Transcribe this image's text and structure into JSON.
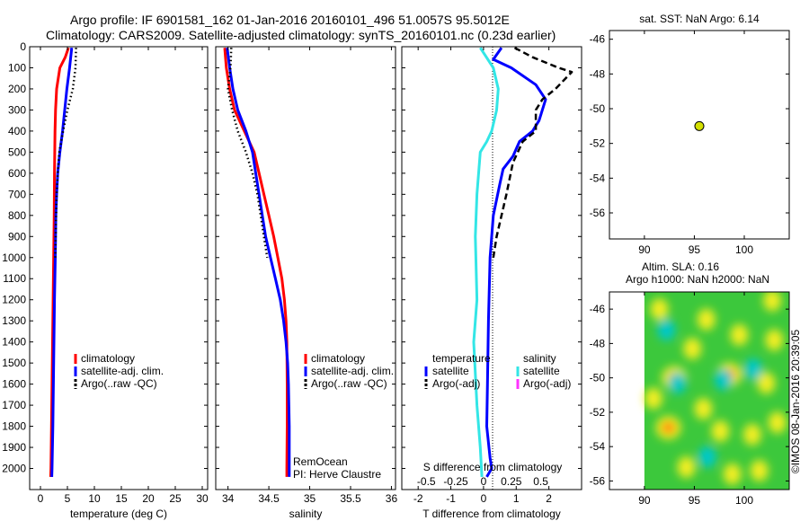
{
  "title": {
    "line1": "Argo profile: IF 6901581_162 01-Jan-2016 20160101_496 51.0057S 95.5012E",
    "line2": "Climatology: CARS2009. Satellite-adjusted climatology: synTS_20160101.nc (0.23d earlier)"
  },
  "side_label": "©IMOS 08-Jan-2016 20:39:05",
  "colors": {
    "climatology": "#ff0000",
    "satellite": "#0000ff",
    "argo": "#000000",
    "salinity_satellite": "#33e6e6",
    "salinity_argo": "#ff33ff",
    "float_marker": "#d4e000"
  },
  "chart_data": [
    {
      "type": "line",
      "id": "temperature",
      "xlabel": "temperature (deg C)",
      "xlim": [
        -2,
        31
      ],
      "xticks": [
        0,
        5,
        10,
        15,
        20,
        25,
        30
      ],
      "ylim": [
        0,
        2100
      ],
      "yticks": [
        0,
        100,
        200,
        300,
        400,
        500,
        600,
        700,
        800,
        900,
        1000,
        1100,
        1200,
        1300,
        1400,
        1500,
        1600,
        1700,
        1800,
        1900,
        2000
      ],
      "legend": [
        "climatology",
        "satellite-adj. clim.",
        "Argo(..raw -QC)"
      ],
      "series": [
        {
          "name": "climatology",
          "color": "#ff0000",
          "style": "solid",
          "points": [
            [
              5.2,
              5
            ],
            [
              4.6,
              50
            ],
            [
              3.6,
              100
            ],
            [
              3.0,
              200
            ],
            [
              2.8,
              300
            ],
            [
              2.7,
              400
            ],
            [
              2.6,
              600
            ],
            [
              2.55,
              800
            ],
            [
              2.45,
              1000
            ],
            [
              2.35,
              1200
            ],
            [
              2.25,
              1400
            ],
            [
              2.15,
              1600
            ],
            [
              2.05,
              1800
            ],
            [
              1.95,
              2000
            ],
            [
              1.9,
              2040
            ]
          ]
        },
        {
          "name": "satellite-adj. clim.",
          "color": "#0000ff",
          "style": "solid",
          "points": [
            [
              5.8,
              5
            ],
            [
              5.4,
              100
            ],
            [
              4.9,
              200
            ],
            [
              4.5,
              300
            ],
            [
              4.1,
              400
            ],
            [
              3.6,
              500
            ],
            [
              3.2,
              600
            ],
            [
              3.0,
              700
            ],
            [
              2.85,
              800
            ],
            [
              2.75,
              1000
            ],
            [
              2.6,
              1200
            ],
            [
              2.5,
              1400
            ],
            [
              2.4,
              1600
            ],
            [
              2.3,
              1800
            ],
            [
              2.15,
              2000
            ],
            [
              2.1,
              2040
            ]
          ]
        },
        {
          "name": "Argo(..raw -QC)",
          "color": "#000000",
          "style": "dotted",
          "points": [
            [
              6.6,
              5
            ],
            [
              6.5,
              100
            ],
            [
              6.0,
              200
            ],
            [
              5.0,
              300
            ],
            [
              4.2,
              400
            ],
            [
              3.5,
              500
            ],
            [
              3.2,
              600
            ],
            [
              3.0,
              700
            ],
            [
              2.9,
              800
            ],
            [
              2.75,
              1000
            ]
          ]
        }
      ]
    },
    {
      "type": "line",
      "id": "salinity",
      "xlabel": "salinity",
      "xlim": [
        33.85,
        36.05
      ],
      "xticks": [
        34,
        34.5,
        35,
        35.5,
        36
      ],
      "ylim": [
        0,
        2100
      ],
      "legend": [
        "climatology",
        "satellite-adj. clim.",
        "Argo(..raw -QC)"
      ],
      "annotation": [
        "RemOcean",
        "PI: Herve Claustre"
      ],
      "series": [
        {
          "name": "climatology",
          "color": "#ff0000",
          "style": "solid",
          "points": [
            [
              33.96,
              5
            ],
            [
              33.98,
              100
            ],
            [
              34.02,
              200
            ],
            [
              34.08,
              300
            ],
            [
              34.2,
              400
            ],
            [
              34.32,
              500
            ],
            [
              34.38,
              600
            ],
            [
              34.44,
              700
            ],
            [
              34.5,
              800
            ],
            [
              34.56,
              900
            ],
            [
              34.61,
              1000
            ],
            [
              34.66,
              1100
            ],
            [
              34.69,
              1200
            ],
            [
              34.71,
              1300
            ],
            [
              34.72,
              1400
            ],
            [
              34.725,
              1600
            ],
            [
              34.725,
              1800
            ],
            [
              34.72,
              2000
            ],
            [
              34.72,
              2040
            ]
          ]
        },
        {
          "name": "satellite-adj. clim.",
          "color": "#0000ff",
          "style": "solid",
          "points": [
            [
              33.99,
              5
            ],
            [
              34.02,
              100
            ],
            [
              34.06,
              200
            ],
            [
              34.12,
              300
            ],
            [
              34.22,
              400
            ],
            [
              34.3,
              500
            ],
            [
              34.34,
              600
            ],
            [
              34.38,
              700
            ],
            [
              34.42,
              800
            ],
            [
              34.46,
              900
            ],
            [
              34.52,
              1000
            ],
            [
              34.58,
              1100
            ],
            [
              34.64,
              1200
            ],
            [
              34.68,
              1300
            ],
            [
              34.71,
              1400
            ],
            [
              34.73,
              1500
            ],
            [
              34.74,
              1600
            ],
            [
              34.75,
              1800
            ],
            [
              34.75,
              2000
            ],
            [
              34.75,
              2040
            ]
          ]
        },
        {
          "name": "Argo(..raw -QC)",
          "color": "#000000",
          "style": "dotted",
          "points": [
            [
              34.04,
              5
            ],
            [
              34.03,
              100
            ],
            [
              34.0,
              200
            ],
            [
              34.05,
              300
            ],
            [
              34.12,
              400
            ],
            [
              34.22,
              500
            ],
            [
              34.3,
              600
            ],
            [
              34.36,
              700
            ],
            [
              34.4,
              800
            ],
            [
              34.44,
              900
            ],
            [
              34.48,
              1000
            ]
          ]
        }
      ]
    },
    {
      "type": "line",
      "id": "difference",
      "xlabel": "T difference from climatology",
      "xlabel_top": "S difference from climatology",
      "xlim": [
        -2.5,
        3.0
      ],
      "xticks": [
        -2,
        -1,
        0,
        1,
        2
      ],
      "xticks_top": [
        -0.5,
        -0.25,
        0,
        0.25,
        0.5
      ],
      "xticks_top_pos": [
        -1.75,
        -0.85,
        0,
        0.85,
        1.75
      ],
      "ylim": [
        0,
        2100
      ],
      "legend": {
        "temperature_header": "temperature",
        "salinity_header": "salinity",
        "temperature_entries": [
          "satellite",
          "Argo(-adj)"
        ],
        "salinity_entries": [
          "satellite",
          "Argo(-adj)"
        ]
      },
      "series": [
        {
          "name": "temperature satellite",
          "color": "#0000ff",
          "style": "solid",
          "points": [
            [
              0.55,
              5
            ],
            [
              0.3,
              60
            ],
            [
              0.85,
              100
            ],
            [
              1.6,
              180
            ],
            [
              1.9,
              250
            ],
            [
              1.7,
              350
            ],
            [
              1.5,
              400
            ],
            [
              1.1,
              450
            ],
            [
              0.9,
              520
            ],
            [
              0.6,
              580
            ],
            [
              0.5,
              650
            ],
            [
              0.3,
              800
            ],
            [
              0.2,
              1000
            ],
            [
              0.15,
              1300
            ],
            [
              0.12,
              1600
            ],
            [
              0.1,
              1800
            ],
            [
              0.2,
              1950
            ],
            [
              0.25,
              2000
            ],
            [
              0.1,
              2040
            ]
          ]
        },
        {
          "name": "temperature Argo(-adj)",
          "color": "#000000",
          "style": "dashed",
          "points": [
            [
              0.95,
              5
            ],
            [
              1.5,
              50
            ],
            [
              2.3,
              100
            ],
            [
              2.7,
              120
            ],
            [
              2.2,
              200
            ],
            [
              1.8,
              250
            ],
            [
              1.6,
              300
            ],
            [
              1.6,
              400
            ],
            [
              1.2,
              450
            ],
            [
              0.9,
              550
            ],
            [
              0.7,
              700
            ],
            [
              0.4,
              900
            ],
            [
              0.3,
              1000
            ]
          ]
        },
        {
          "name": "salinity satellite",
          "color": "#33e6e6",
          "style": "solid",
          "points": [
            [
              -0.1,
              5
            ],
            [
              0.3,
              100
            ],
            [
              0.45,
              200
            ],
            [
              0.4,
              300
            ],
            [
              0.25,
              400
            ],
            [
              0.1,
              450
            ],
            [
              -0.1,
              500
            ],
            [
              -0.2,
              700
            ],
            [
              -0.25,
              900
            ],
            [
              -0.2,
              1200
            ],
            [
              -0.3,
              1400
            ],
            [
              -0.2,
              1700
            ],
            [
              -0.1,
              1900
            ],
            [
              -0.05,
              2040
            ]
          ]
        }
      ]
    },
    {
      "type": "scatter",
      "id": "sst-map",
      "title": "sat. SST: NaN Argo: 6.14",
      "xlim": [
        86.5,
        104.5
      ],
      "xticks": [
        90,
        95,
        100
      ],
      "ylim": [
        -57.5,
        -45.5
      ],
      "yticks": [
        -46,
        -48,
        -50,
        -52,
        -54,
        -56
      ],
      "points": [
        {
          "lon": 95.5,
          "lat": -51.0
        }
      ]
    },
    {
      "type": "heatmap",
      "id": "sla-map",
      "title_line1": "Altim. SLA: 0.16",
      "title_line2": "Argo h1000: NaN h2000: NaN",
      "xlim": [
        86.5,
        104.5
      ],
      "xticks": [
        90,
        95,
        100
      ],
      "ylim": [
        -56.5,
        -45.0
      ],
      "yticks": [
        -46,
        -48,
        -50,
        -52,
        -54,
        -56
      ],
      "data_lon_range": [
        90.0,
        104.5
      ],
      "anomaly_blobs": [
        {
          "lon": 91.5,
          "lat": -46.0,
          "level": 1
        },
        {
          "lon": 96.2,
          "lat": -46.6,
          "level": 1
        },
        {
          "lon": 99.5,
          "lat": -47.5,
          "level": 1
        },
        {
          "lon": 94.8,
          "lat": -48.3,
          "level": 1
        },
        {
          "lon": 103.0,
          "lat": -47.8,
          "level": 1
        },
        {
          "lon": 93.0,
          "lat": -50.0,
          "level": 2
        },
        {
          "lon": 98.5,
          "lat": -49.8,
          "level": 2
        },
        {
          "lon": 102.2,
          "lat": -50.3,
          "level": 1
        },
        {
          "lon": 90.9,
          "lat": -51.2,
          "level": 1
        },
        {
          "lon": 95.9,
          "lat": -51.8,
          "level": 1
        },
        {
          "lon": 92.4,
          "lat": -52.9,
          "level": 2
        },
        {
          "lon": 97.6,
          "lat": -53.1,
          "level": 1
        },
        {
          "lon": 100.8,
          "lat": -53.3,
          "level": 1
        },
        {
          "lon": 103.3,
          "lat": -52.6,
          "level": 1
        },
        {
          "lon": 94.2,
          "lat": -55.2,
          "level": 1
        },
        {
          "lon": 98.8,
          "lat": -55.6,
          "level": 1
        },
        {
          "lon": 101.5,
          "lat": -55.4,
          "level": 1
        },
        {
          "lon": 102.8,
          "lat": -45.5,
          "level": 1
        },
        {
          "lon": 93.3,
          "lat": -50.3,
          "level": -1
        },
        {
          "lon": 97.9,
          "lat": -50.1,
          "level": -1
        },
        {
          "lon": 100.9,
          "lat": -49.5,
          "level": -1
        },
        {
          "lon": 96.3,
          "lat": -54.6,
          "level": -1
        },
        {
          "lon": 92.2,
          "lat": -47.2,
          "level": -1
        }
      ]
    }
  ]
}
